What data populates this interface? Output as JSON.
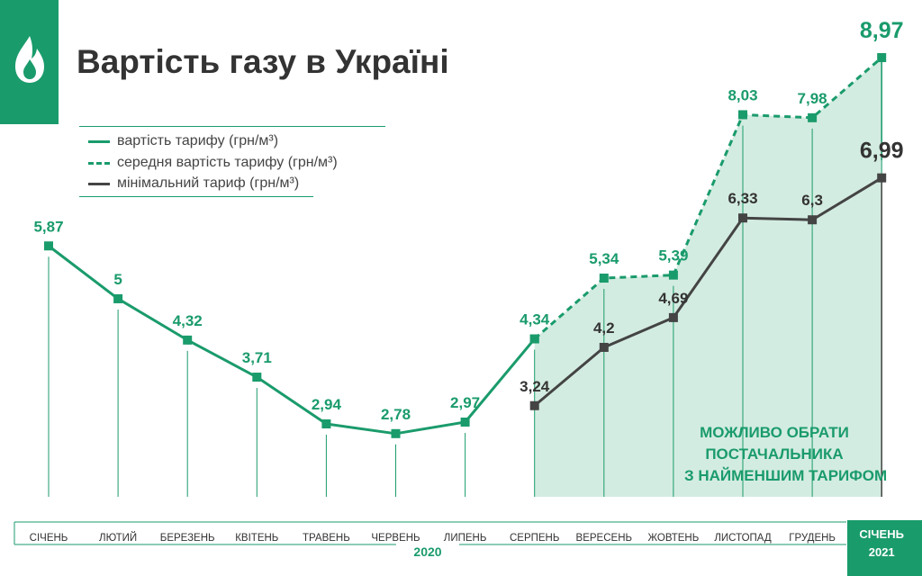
{
  "title": "Вартість газу в Україні",
  "legend": {
    "tariff": "вартість тарифу (грн/м³)",
    "avg": "середня вартість тарифу (грн/м³)",
    "min": "мінімальний тариф (грн/м³)"
  },
  "callout": [
    "МОЖЛИВО ОБРАТИ",
    "ПОСТАЧАЛЬНИКА",
    "З НАЙМЕНШИМ ТАРИФОМ"
  ],
  "colors": {
    "green": "#1a9b6c",
    "dark": "#444444",
    "fill": "#d3ece1"
  },
  "icons": {
    "logo": "flame-icon"
  },
  "chart_data": {
    "type": "line",
    "categories": [
      "СІЧЕНЬ",
      "ЛЮТИЙ",
      "БЕРЕЗЕНЬ",
      "КВІТЕНЬ",
      "ТРАВЕНЬ",
      "ЧЕРВЕНЬ",
      "ЛИПЕНЬ",
      "СЕРПЕНЬ",
      "ВЕРЕСЕНЬ",
      "ЖОВТЕНЬ",
      "ЛИСТОПАД",
      "ГРУДЕНЬ",
      "СІЧЕНЬ"
    ],
    "year_labels": [
      "2020",
      "2021"
    ],
    "series": [
      {
        "name": "вартість тарифу (грн/м³)",
        "values": [
          5.87,
          5,
          4.32,
          3.71,
          2.94,
          2.78,
          2.97,
          4.34,
          null,
          null,
          null,
          null,
          null
        ],
        "labels": [
          "5,87",
          "5",
          "4,32",
          "3,71",
          "2,94",
          "2,78",
          "2,97",
          "4,34",
          "",
          "",
          "",
          "",
          ""
        ]
      },
      {
        "name": "середня вартість тарифу (грн/м³)",
        "values": [
          null,
          null,
          null,
          null,
          null,
          null,
          null,
          4.34,
          5.34,
          5.39,
          8.03,
          7.98,
          8.97
        ],
        "labels": [
          "",
          "",
          "",
          "",
          "",
          "",
          "",
          "",
          "5,34",
          "5,39",
          "8,03",
          "7,98",
          "8,97"
        ]
      },
      {
        "name": "мінімальний тариф (грн/м³)",
        "values": [
          null,
          null,
          null,
          null,
          null,
          null,
          null,
          3.24,
          4.2,
          4.69,
          6.33,
          6.3,
          6.99
        ],
        "labels": [
          "",
          "",
          "",
          "",
          "",
          "",
          "",
          "3,24",
          "4,2",
          "4,69",
          "6,33",
          "6,3",
          "6,99"
        ]
      }
    ],
    "ylim": [
      1.74,
      9.8
    ],
    "grid": false
  }
}
